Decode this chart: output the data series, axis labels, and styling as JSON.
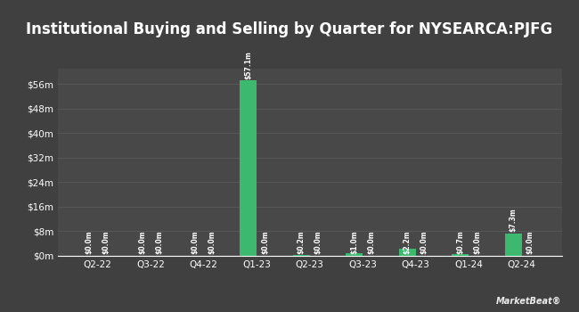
{
  "title": "Institutional Buying and Selling by Quarter for NYSEARCA:PJFG",
  "quarters": [
    "Q2-22",
    "Q3-22",
    "Q4-22",
    "Q1-23",
    "Q2-23",
    "Q3-23",
    "Q4-23",
    "Q1-24",
    "Q2-24"
  ],
  "inflows": [
    0.0,
    0.0,
    0.0,
    57.1,
    0.2,
    1.0,
    2.2,
    0.7,
    7.3
  ],
  "outflows": [
    0.0,
    0.0,
    0.0,
    0.0,
    0.0,
    0.0,
    0.0,
    0.0,
    0.0
  ],
  "inflow_labels": [
    "$0.0m",
    "$0.0m",
    "$0.0m",
    "$57.1m",
    "$0.2m",
    "$1.0m",
    "$2.2m",
    "$0.7m",
    "$7.3m"
  ],
  "outflow_labels": [
    "$0.0m",
    "$0.0m",
    "$0.0m",
    "$0.0m",
    "$0.0m",
    "$0.0m",
    "$0.0m",
    "$0.0m",
    "$0.0m"
  ],
  "inflow_color": "#3cb96e",
  "outflow_color": "#cd5c5c",
  "bg_color": "#404040",
  "plot_bg_color": "#484848",
  "grid_color": "#585858",
  "text_color": "#ffffff",
  "title_fontsize": 12,
  "label_fontsize": 5.5,
  "tick_fontsize": 7.5,
  "ytick_labels": [
    "$0m",
    "$8m",
    "$16m",
    "$24m",
    "$32m",
    "$40m",
    "$48m",
    "$56m"
  ],
  "ytick_values": [
    0,
    8,
    16,
    24,
    32,
    40,
    48,
    56
  ],
  "ylim": [
    0,
    61
  ],
  "bar_width": 0.32
}
